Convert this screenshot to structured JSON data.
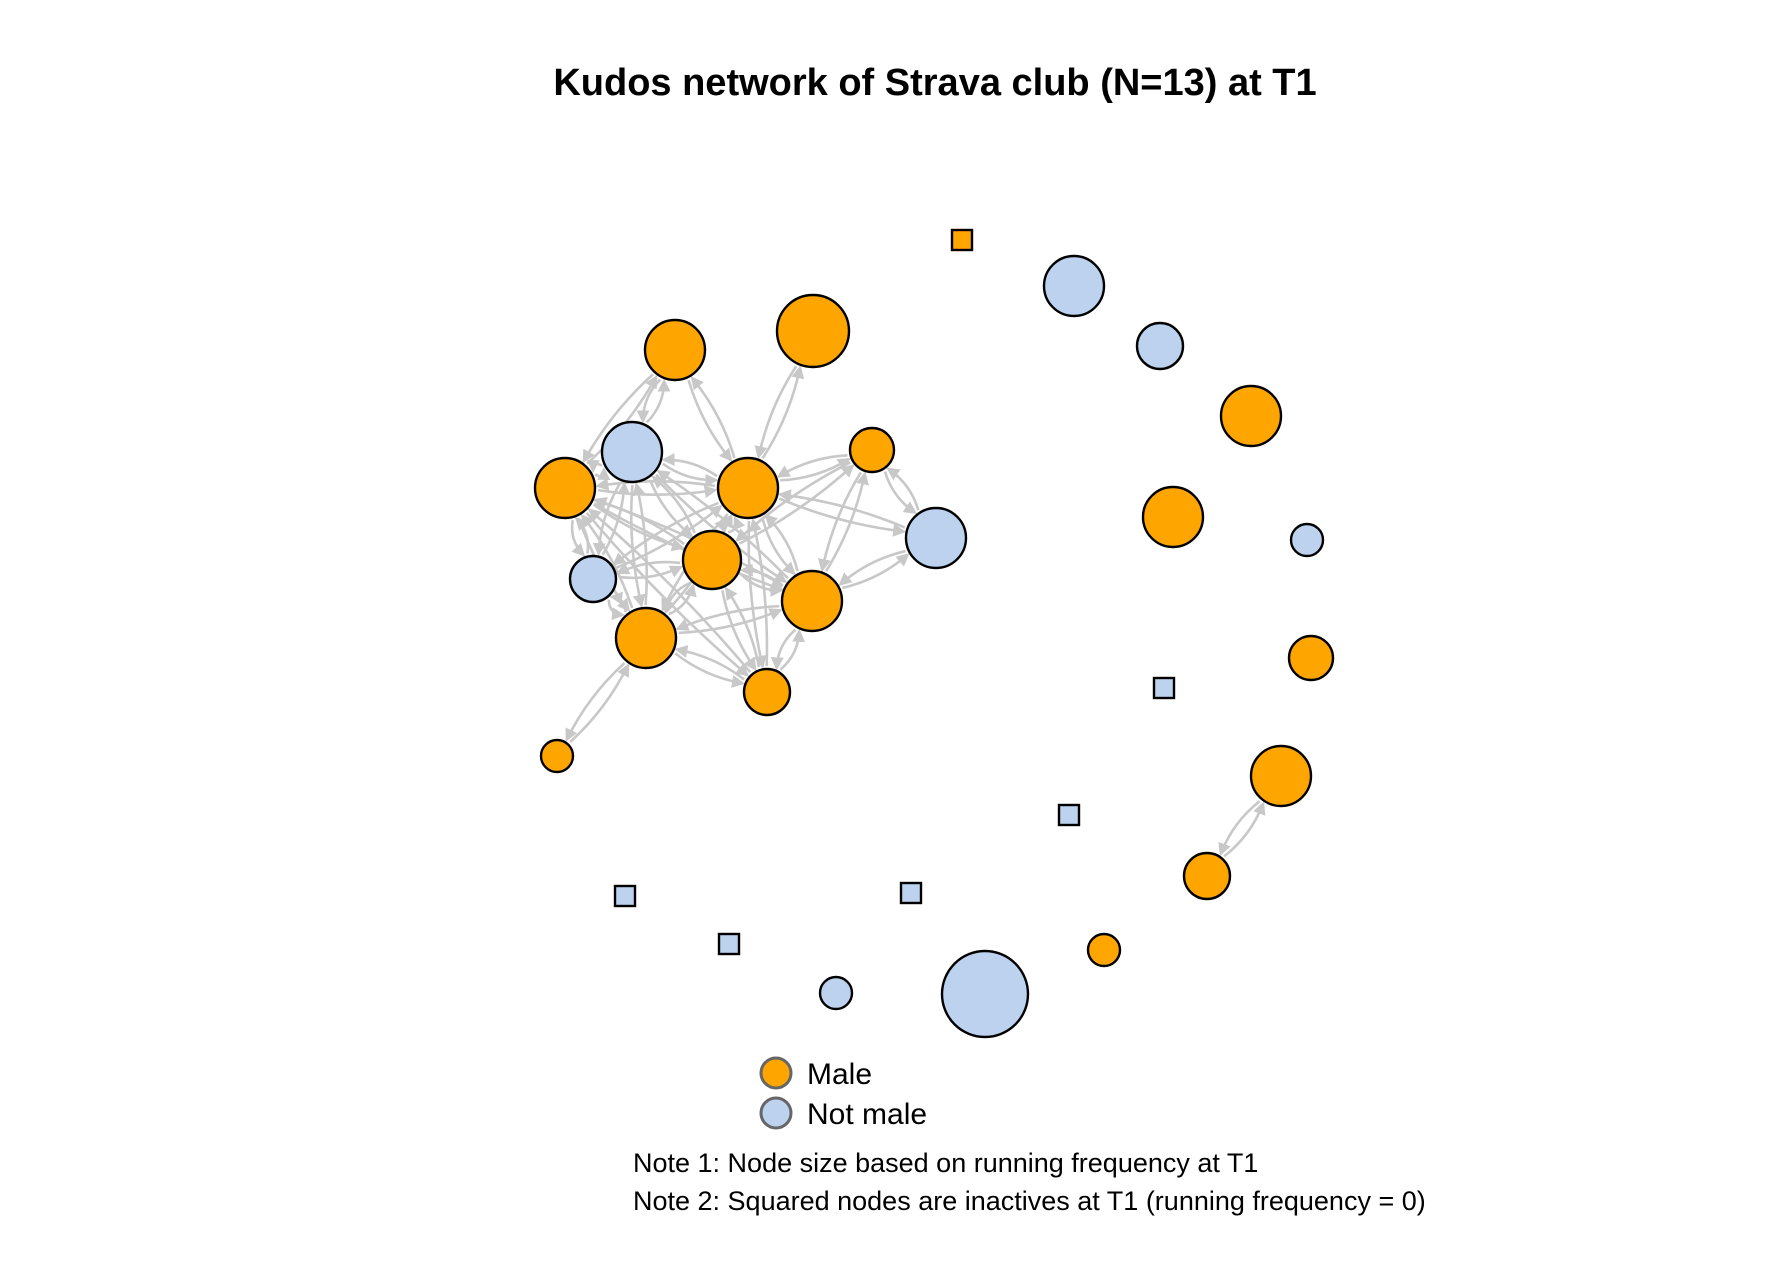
{
  "title": "Kudos network of Strava club (N=13) at T1",
  "colors": {
    "male": "#FFA500",
    "not_male": "#BCD2EE",
    "edge": "#C8C8C8"
  },
  "legend": [
    {
      "key": "male",
      "label": "Male"
    },
    {
      "key": "not_male",
      "label": "Not male"
    }
  ],
  "notes": [
    "Note 1: Node size based on running frequency at T1",
    "Note 2: Squared nodes are inactives at T1 (running frequency = 0)"
  ]
}
